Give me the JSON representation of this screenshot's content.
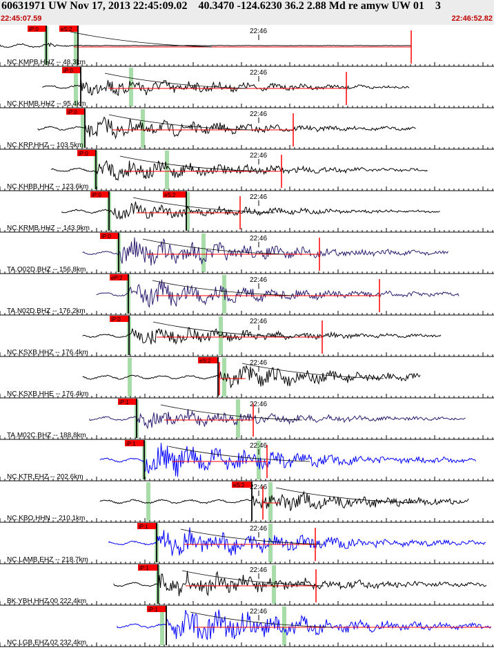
{
  "header": {
    "title": "60631971 UW Nov 17, 2013 22:45:09.02    40.3470 -124.6230 36.2 2.88 Md re amyw UW 01    3",
    "start_time": "22:45:07.59",
    "end_time": "22:46:52.82",
    "time_mark": "22:46"
  },
  "colors": {
    "black": "#000000",
    "navy": "#2a1a6e",
    "blue": "#0000ff",
    "pick": "#ff0000",
    "green": "#a8dca8"
  },
  "traces": [
    {
      "label": "NC.KMPB.HHZ -- 48.3km",
      "color": "black",
      "picks": [
        {
          "text": "iP:0"
        },
        {
          "text": "eS:2"
        }
      ]
    },
    {
      "label": "NC.KHMB.HHZ -- 95.4km",
      "color": "black",
      "picks": [
        {
          "text": "iP:0"
        }
      ]
    },
    {
      "label": "NC.KRP.HHZ -- 103.5km",
      "color": "black",
      "picks": [
        {
          "text": "iP:0"
        }
      ]
    },
    {
      "label": "NC.KHBB.HHZ -- 123.6km",
      "color": "black",
      "picks": [
        {
          "text": "iP:0"
        }
      ]
    },
    {
      "label": "NC.KRMB.HHZ -- 143.9km",
      "color": "black",
      "picks": [
        {
          "text": "iP:0"
        },
        {
          "text": "eS:2"
        }
      ]
    },
    {
      "label": "TA.O02D.BHZ -- 156.8km",
      "color": "navy",
      "picks": [
        {
          "text": "iP:0"
        }
      ]
    },
    {
      "label": "TA.N02D.BHZ -- 176.2km",
      "color": "navy",
      "picks": [
        {
          "text": "eP:2"
        }
      ]
    },
    {
      "label": "NC.KSXB.HHZ -- 176.4km",
      "color": "black",
      "picks": [
        {
          "text": "iP:0"
        }
      ]
    },
    {
      "label": "NC.KSXB.HHE -- 176.4km",
      "color": "black",
      "picks": [
        {
          "text": "eS:2"
        }
      ]
    },
    {
      "label": "TA.M02C.BHZ -- 188.8km",
      "color": "navy",
      "picks": [
        {
          "text": "iP:1"
        }
      ]
    },
    {
      "label": "NC.KTR.EHZ -- 202.6km",
      "color": "blue",
      "picks": [
        {
          "text": "iP:1"
        }
      ]
    },
    {
      "label": "NC.KBO.HHN -- 210.1km",
      "color": "black",
      "picks": [
        {
          "text": "eS:2"
        }
      ]
    },
    {
      "label": "NC.LAMB.EHZ -- 218.7km",
      "color": "blue",
      "picks": [
        {
          "text": "iP:1"
        }
      ]
    },
    {
      "label": "BK.YBH.HHZ.00 222.4km",
      "color": "black",
      "picks": [
        {
          "text": "iP:1"
        }
      ]
    },
    {
      "label": "NC.LGB.EHZ.02 232.4km",
      "color": "blue",
      "picks": [
        {
          "text": "iP:1"
        }
      ]
    }
  ]
}
